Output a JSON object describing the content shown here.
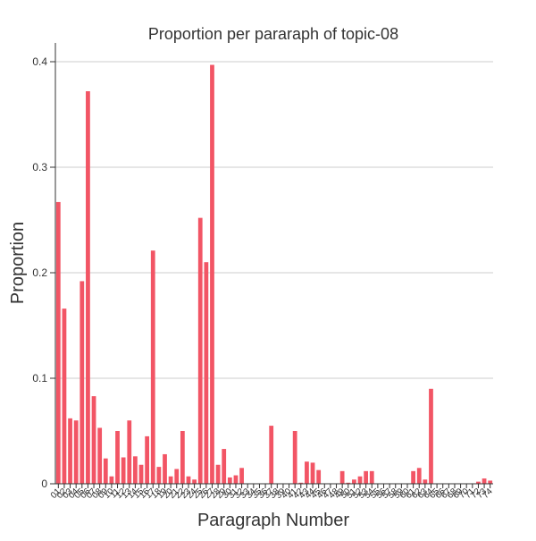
{
  "chart_data": {
    "type": "bar",
    "title": "Proportion per pararaph of topic-08",
    "xlabel": "Paragraph Number",
    "ylabel": "Proportion",
    "ylim": [
      0,
      0.4
    ],
    "yticks": [
      "0",
      "0.1",
      "0.2",
      "0.3",
      "0.4"
    ],
    "ytick_values": [
      0,
      0.1,
      0.2,
      0.3,
      0.4
    ],
    "grid": "horizontal",
    "bar_color": "#f25565",
    "categories": [
      "01",
      "02",
      "03",
      "04",
      "05",
      "06",
      "07",
      "08",
      "09",
      "10",
      "11",
      "12",
      "13",
      "14",
      "15",
      "16",
      "17",
      "18",
      "19",
      "20",
      "21",
      "22",
      "23",
      "24",
      "25",
      "26",
      "27",
      "28",
      "29",
      "30",
      "31",
      "32",
      "33",
      "34",
      "35",
      "36",
      "37",
      "38",
      "39",
      "40",
      "41",
      "42",
      "43",
      "44",
      "45",
      "46",
      "47",
      "48",
      "49",
      "50",
      "51",
      "52",
      "53",
      "54",
      "55",
      "56",
      "57",
      "58",
      "59",
      "60",
      "61",
      "62",
      "63",
      "64",
      "65",
      "66",
      "67",
      "68",
      "69",
      "70",
      "71",
      "72",
      "73",
      "74"
    ],
    "values": [
      0.267,
      0.166,
      0.062,
      0.06,
      0.192,
      0.372,
      0.083,
      0.053,
      0.024,
      0.007,
      0.05,
      0.025,
      0.06,
      0.026,
      0.018,
      0.045,
      0.221,
      0.016,
      0.028,
      0.007,
      0.014,
      0.05,
      0.007,
      0.004,
      0.252,
      0.21,
      0.397,
      0.018,
      0.033,
      0.006,
      0.008,
      0.015,
      0,
      0,
      0,
      0,
      0.055,
      0,
      0,
      0,
      0.05,
      0.001,
      0.021,
      0.02,
      0.013,
      0,
      0,
      0,
      0.012,
      0.001,
      0.004,
      0.007,
      0.012,
      0.012,
      0,
      0,
      0,
      0,
      0,
      0,
      0.012,
      0.015,
      0.004,
      0.09,
      0,
      0,
      0,
      0,
      0,
      0,
      0,
      0.002,
      0.005,
      0.003
    ]
  }
}
